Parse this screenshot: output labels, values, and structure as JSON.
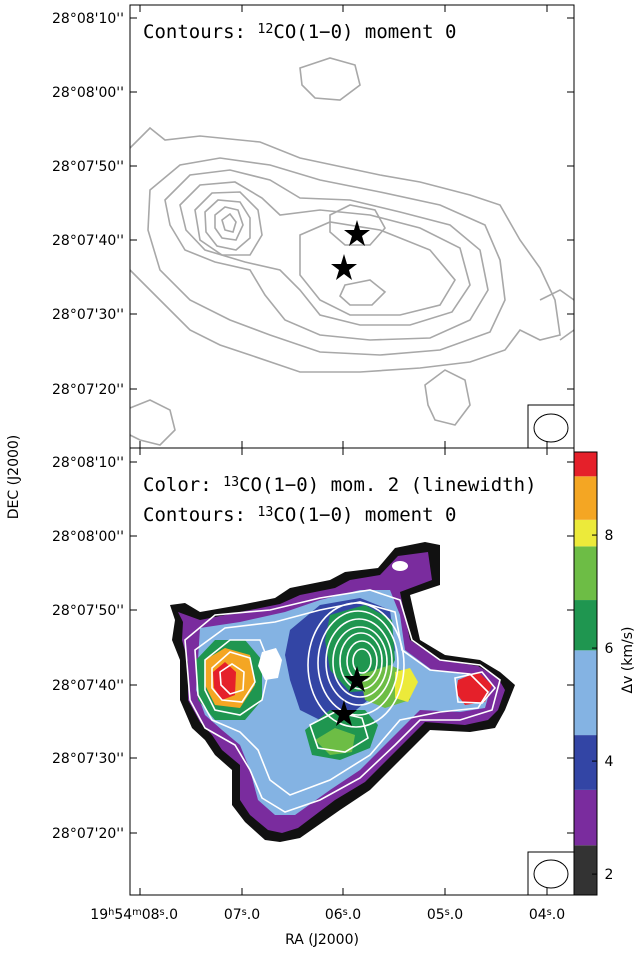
{
  "top_panel": {
    "annotation": [
      {
        "text": "Contours: "
      },
      {
        "text": "12",
        "sup": true
      },
      {
        "text": "CO(1−0) moment 0"
      }
    ]
  },
  "bottom_panel": {
    "annotation_1": [
      {
        "text": "Color: "
      },
      {
        "text": "13",
        "sup": true
      },
      {
        "text": "CO(1−0) mom. 2 (linewidth)"
      }
    ],
    "annotation_2": [
      {
        "text": "Contours: "
      },
      {
        "text": "13",
        "sup": true
      },
      {
        "text": "CO(1−0) moment 0"
      }
    ]
  },
  "y_tick_labels": [
    "28°08'10''",
    "28°08'00''",
    "28°07'50''",
    "28°07'40''",
    "28°07'30''",
    "28°07'20''"
  ],
  "x_tick_labels": [
    [
      {
        "text": "19"
      },
      {
        "text": "h",
        "sup": true
      },
      {
        "text": "54"
      },
      {
        "text": "m",
        "sup": true
      },
      {
        "text": "08"
      },
      {
        "text": "s",
        "sup": true
      },
      {
        "text": ".0"
      }
    ],
    [
      {
        "text": "07"
      },
      {
        "text": "s",
        "sup": true
      },
      {
        "text": ".0"
      }
    ],
    [
      {
        "text": "06"
      },
      {
        "text": "s",
        "sup": true
      },
      {
        "text": ".0"
      }
    ],
    [
      {
        "text": "05"
      },
      {
        "text": "s",
        "sup": true
      },
      {
        "text": ".0"
      }
    ],
    [
      {
        "text": "04"
      },
      {
        "text": "s",
        "sup": true
      },
      {
        "text": ".0"
      }
    ]
  ],
  "y_axis_label": "DEC (J2000)",
  "x_axis_label": "RA (J2000)",
  "colorbar": {
    "label": "Δv (km/s)",
    "lim": [
      1.63,
      9.47
    ],
    "ticks": [
      2,
      4,
      6,
      8
    ],
    "levels": [
      {
        "from": 1.63,
        "to": 2.51,
        "color": "#333333"
      },
      {
        "from": 2.51,
        "to": 3.49,
        "color": "#7a2c9e"
      },
      {
        "from": 3.49,
        "to": 4.46,
        "color": "#3345a5"
      },
      {
        "from": 4.46,
        "to": 5.96,
        "color": "#84b3e3"
      },
      {
        "from": 5.96,
        "to": 6.85,
        "color": "#1f9650"
      },
      {
        "from": 6.85,
        "to": 7.8,
        "color": "#6dbd45"
      },
      {
        "from": 7.8,
        "to": 8.27,
        "color": "#ecea3a"
      },
      {
        "from": 8.27,
        "to": 9.04,
        "color": "#f4a623"
      },
      {
        "from": 9.04,
        "to": 9.47,
        "color": "#e5202a"
      }
    ]
  }
}
